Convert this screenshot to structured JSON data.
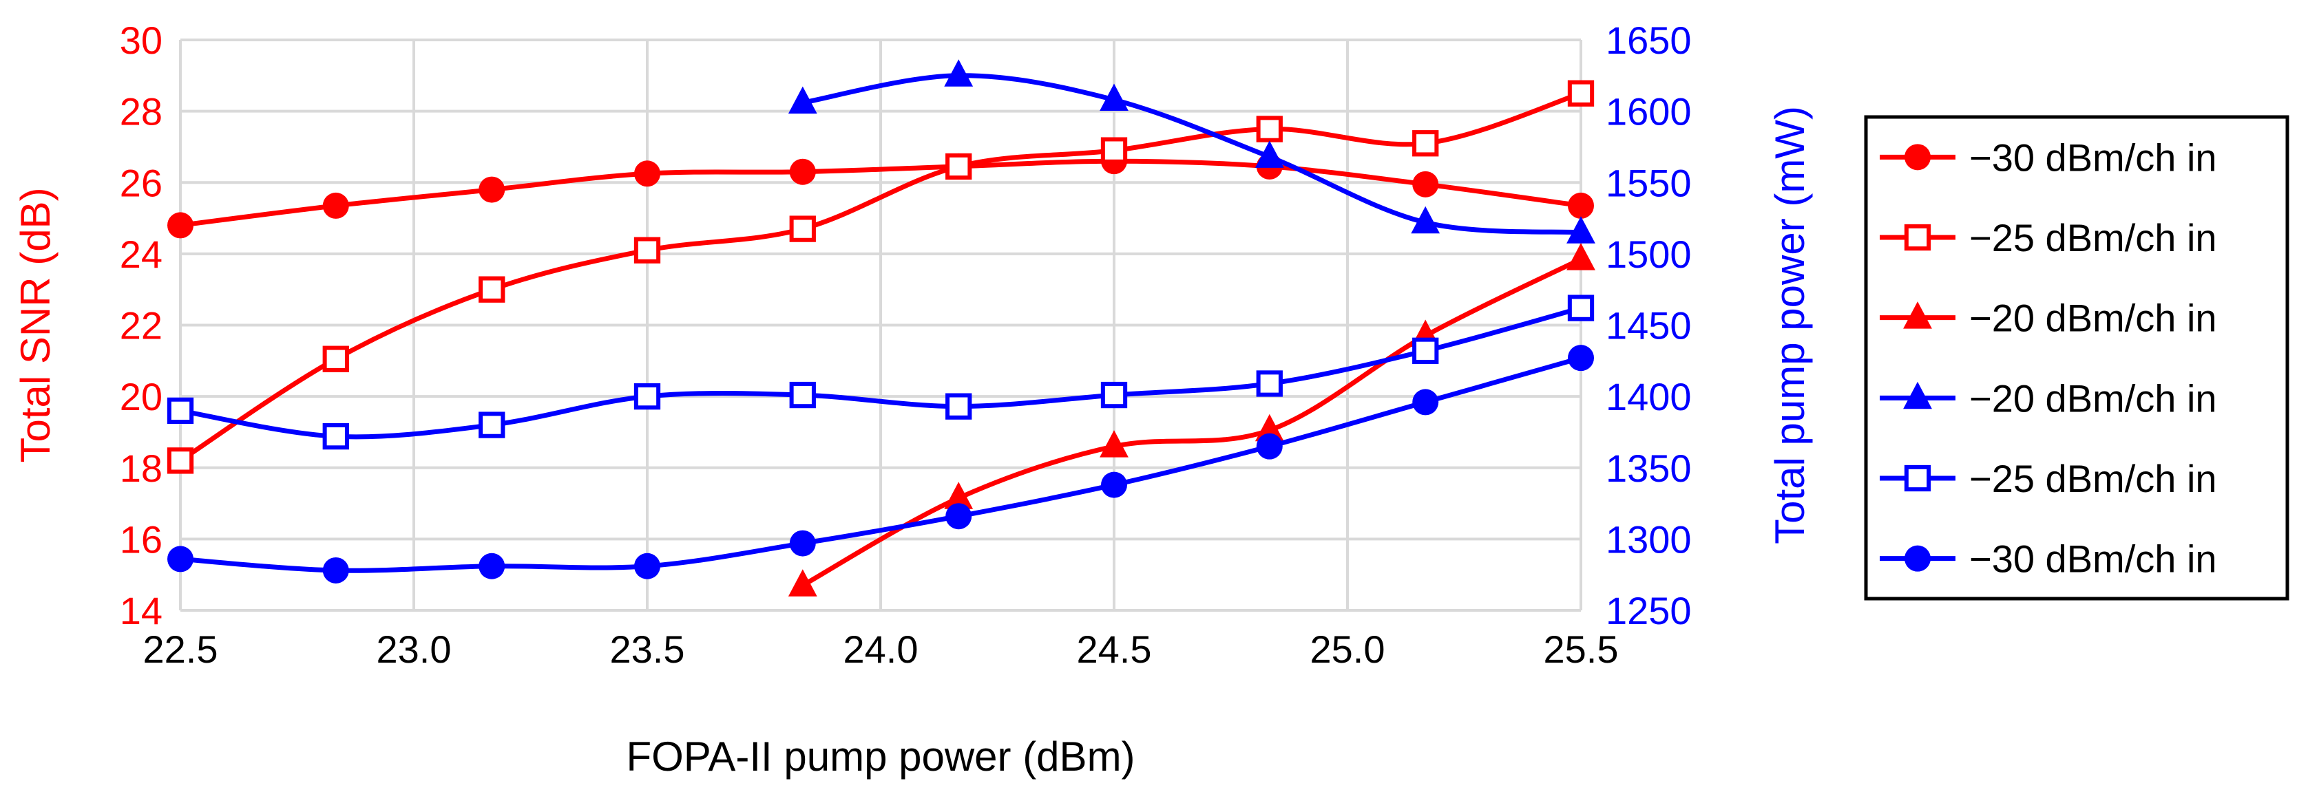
{
  "chart_data": {
    "type": "line",
    "x_axis": {
      "label": "FOPA-II pump power (dBm)",
      "range": [
        22.5,
        25.5
      ],
      "ticks": [
        "22.5",
        "23.0",
        "23.5",
        "24.0",
        "24.5",
        "25.0",
        "25.5"
      ]
    },
    "y_left": {
      "label": "Total SNR (dB)",
      "range": [
        14,
        30
      ],
      "ticks": [
        "14",
        "16",
        "18",
        "20",
        "22",
        "24",
        "26",
        "28",
        "30"
      ],
      "color": "#ff0000"
    },
    "y_right": {
      "label": "Total pump power (mW)",
      "range": [
        1250,
        1650
      ],
      "ticks": [
        "1250",
        "1300",
        "1350",
        "1400",
        "1450",
        "1500",
        "1550",
        "1600",
        "1650"
      ],
      "color": "#0000ff"
    },
    "grid": true,
    "legend_position": "right",
    "series": [
      {
        "name": "−30 dBm/ch in",
        "axis": "left",
        "color": "#ff0000",
        "marker": "circle-filled",
        "x": [
          22.5,
          22.833,
          23.167,
          23.5,
          23.833,
          24.167,
          24.5,
          24.833,
          25.167,
          25.5
        ],
        "values": [
          24.8,
          25.35,
          25.8,
          26.25,
          26.3,
          26.45,
          26.6,
          26.45,
          25.95,
          25.35
        ]
      },
      {
        "name": "−25 dBm/ch in",
        "axis": "left",
        "color": "#ff0000",
        "marker": "square-open",
        "x": [
          22.5,
          22.833,
          23.167,
          23.5,
          23.833,
          24.167,
          24.5,
          24.833,
          25.167,
          25.5
        ],
        "values": [
          18.2,
          21.05,
          23.0,
          24.1,
          24.7,
          26.45,
          26.9,
          27.5,
          27.1,
          28.5
        ]
      },
      {
        "name": "−20 dBm/ch in",
        "axis": "left",
        "color": "#ff0000",
        "marker": "triangle-filled",
        "x": [
          23.833,
          24.167,
          24.5,
          24.833,
          25.167,
          25.5
        ],
        "values": [
          14.7,
          17.15,
          18.6,
          19.05,
          21.7,
          23.85
        ]
      },
      {
        "name": "−20 dBm/ch in",
        "axis": "right",
        "color": "#0000ff",
        "marker": "triangle-filled",
        "x": [
          23.833,
          24.167,
          24.5,
          24.833,
          25.167,
          25.5
        ],
        "values": [
          1606,
          1625,
          1608,
          1568,
          1522,
          1515
        ]
      },
      {
        "name": "−25 dBm/ch in",
        "axis": "right",
        "color": "#0000ff",
        "marker": "square-open",
        "x": [
          22.5,
          22.833,
          23.167,
          23.5,
          23.833,
          24.167,
          24.5,
          24.833,
          25.167,
          25.5
        ],
        "values": [
          1390,
          1372,
          1380,
          1400,
          1401,
          1393,
          1401,
          1409,
          1432,
          1462
        ]
      },
      {
        "name": "−30 dBm/ch in",
        "axis": "right",
        "color": "#0000ff",
        "marker": "circle-filled",
        "x": [
          22.5,
          22.833,
          23.167,
          23.5,
          23.833,
          24.167,
          24.5,
          24.833,
          25.167,
          25.5
        ],
        "values": [
          1286,
          1278,
          1281,
          1281,
          1297,
          1316,
          1338,
          1365,
          1396,
          1427
        ]
      }
    ]
  }
}
